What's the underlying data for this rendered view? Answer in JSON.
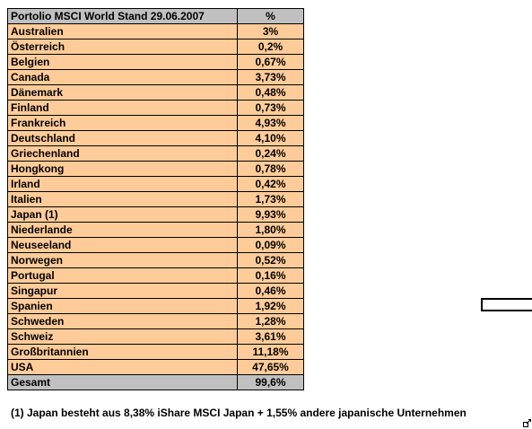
{
  "table": {
    "header": {
      "title": "Portolio MSCI World  Stand 29.06.2007",
      "percent_label": "%"
    },
    "rows": [
      {
        "country": "Australien",
        "percent": "3%"
      },
      {
        "country": "Österreich",
        "percent": "0,2%"
      },
      {
        "country": "Belgien",
        "percent": "0,67%"
      },
      {
        "country": "Canada",
        "percent": "3,73%"
      },
      {
        "country": "Dänemark",
        "percent": "0,48%"
      },
      {
        "country": "Finland",
        "percent": "0,73%"
      },
      {
        "country": "Frankreich",
        "percent": "4,93%"
      },
      {
        "country": "Deutschland",
        "percent": "4,10%"
      },
      {
        "country": "Griechenland",
        "percent": "0,24%"
      },
      {
        "country": "Hongkong",
        "percent": "0,78%"
      },
      {
        "country": "Irland",
        "percent": "0,42%"
      },
      {
        "country": "Italien",
        "percent": "1,73%"
      },
      {
        "country": "Japan (1)",
        "percent": "9,93%"
      },
      {
        "country": "Niederlande",
        "percent": "1,80%"
      },
      {
        "country": "Neuseeland",
        "percent": "0,09%"
      },
      {
        "country": "Norwegen",
        "percent": "0,52%"
      },
      {
        "country": "Portugal",
        "percent": "0,16%"
      },
      {
        "country": "Singapur",
        "percent": "0,46%"
      },
      {
        "country": "Spanien",
        "percent": "1,92%"
      },
      {
        "country": "Schweden",
        "percent": "1,28%"
      },
      {
        "country": "Schweiz",
        "percent": "3,61%"
      },
      {
        "country": "Großbritannien",
        "percent": "11,18%"
      },
      {
        "country": "USA",
        "percent": "47,65%"
      }
    ],
    "total": {
      "label": "Gesamt",
      "percent": "99,6%"
    }
  },
  "footnote": "(1) Japan besteht aus 8,38% iShare MSCI Japan + 1,55% andere japanische Unternehmen",
  "colors": {
    "header_fill": "#c0c0c0",
    "row_fill": "#ffcc99",
    "border": "#000000"
  },
  "icons": {
    "resize_handle": "resize-handle-icon"
  }
}
